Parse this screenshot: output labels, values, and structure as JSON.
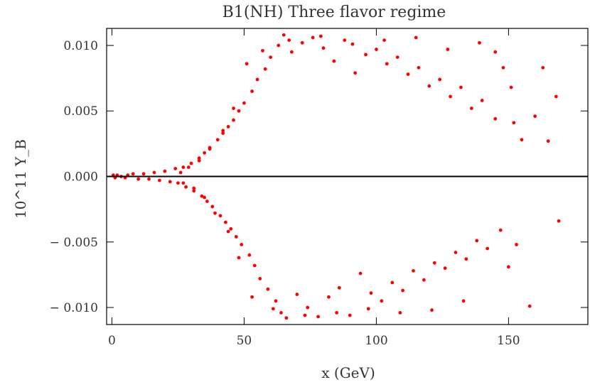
{
  "chart_data": {
    "type": "scatter",
    "title": "B1(NH) Three flavor regime",
    "xlabel": "x (GeV)",
    "ylabel": "10^11 Y_B",
    "xlim": [
      -2,
      180
    ],
    "ylim": [
      -0.0113,
      0.0113
    ],
    "x_ticks": [
      0,
      50,
      100,
      150
    ],
    "x_tick_labels": [
      "0",
      "50",
      "100",
      "150"
    ],
    "y_ticks": [
      -0.01,
      -0.005,
      0.0,
      0.005,
      0.01
    ],
    "y_tick_labels": [
      "− 0.010",
      "− 0.005",
      "0.000",
      "0.005",
      "0.010"
    ],
    "reference_line_y": 0,
    "marker_color": "#ff0000",
    "axis_color": "#000000",
    "series": [
      {
        "points": [
          [
            0.5,
            0.0001
          ],
          [
            1.2,
            -0.0001
          ],
          [
            2.0,
            0.0001
          ],
          [
            3.5,
            0.0
          ],
          [
            5.0,
            -0.0001
          ],
          [
            6.0,
            0.0001
          ],
          [
            8.0,
            0.0002
          ],
          [
            10.0,
            -0.0002
          ],
          [
            12.0,
            0.0002
          ],
          [
            14.0,
            -0.0002
          ],
          [
            16.0,
            0.0003
          ],
          [
            18.0,
            -0.0003
          ],
          [
            20.0,
            0.0004
          ],
          [
            22.0,
            -0.0004
          ],
          [
            24.0,
            0.0006
          ],
          [
            25.0,
            -0.0005
          ],
          [
            27.0,
            0.0007
          ],
          [
            28.0,
            -0.0008
          ],
          [
            30.0,
            0.001
          ],
          [
            31.0,
            -0.0011
          ],
          [
            33.0,
            0.0014
          ],
          [
            34.0,
            -0.0015
          ],
          [
            35.0,
            0.0018
          ],
          [
            36.0,
            -0.0019
          ],
          [
            37.0,
            0.0022
          ],
          [
            38.0,
            -0.0023
          ],
          [
            40.0,
            0.0028
          ],
          [
            41.0,
            -0.003
          ],
          [
            42.0,
            0.0033
          ],
          [
            43.0,
            -0.0035
          ],
          [
            44.0,
            0.0038
          ],
          [
            45.0,
            -0.004
          ],
          [
            46.0,
            0.0043
          ],
          [
            47.0,
            -0.0046
          ],
          [
            48.0,
            0.005
          ],
          [
            49.0,
            -0.0052
          ],
          [
            50.0,
            0.0056
          ],
          [
            52.0,
            -0.006
          ],
          [
            53.0,
            0.0065
          ],
          [
            54.0,
            -0.0068
          ],
          [
            55.0,
            0.0074
          ],
          [
            56.0,
            -0.0078
          ],
          [
            58.0,
            0.0082
          ],
          [
            59.0,
            -0.0086
          ],
          [
            60.0,
            0.0091
          ],
          [
            62.0,
            -0.0095
          ],
          [
            63.0,
            0.01
          ],
          [
            64.0,
            -0.0104
          ],
          [
            65.0,
            0.0108
          ],
          [
            66.0,
            -0.0108
          ],
          [
            68.0,
            0.0095
          ],
          [
            70.0,
            -0.009
          ],
          [
            72.0,
            0.0102
          ],
          [
            74.0,
            -0.01
          ],
          [
            76.0,
            0.0106
          ],
          [
            78.0,
            -0.0107
          ],
          [
            80.0,
            0.0098
          ],
          [
            82.0,
            -0.0092
          ],
          [
            84.0,
            0.0088
          ],
          [
            86.0,
            -0.0085
          ],
          [
            88.0,
            0.0104
          ],
          [
            90.0,
            -0.0106
          ],
          [
            92.0,
            0.0079
          ],
          [
            94.0,
            -0.0074
          ],
          [
            96.0,
            0.0093
          ],
          [
            98.0,
            -0.0089
          ],
          [
            100.0,
            0.0097
          ],
          [
            102.0,
            -0.0095
          ],
          [
            104.0,
            0.0086
          ],
          [
            106.0,
            -0.0081
          ],
          [
            108.0,
            0.0091
          ],
          [
            110.0,
            -0.0087
          ],
          [
            112.0,
            0.0078
          ],
          [
            114.0,
            -0.0072
          ],
          [
            116.0,
            0.0083
          ],
          [
            118.0,
            -0.0079
          ],
          [
            120.0,
            0.0069
          ],
          [
            122.0,
            -0.0066
          ],
          [
            124.0,
            0.0074
          ],
          [
            126.0,
            -0.007
          ],
          [
            128.0,
            0.0061
          ],
          [
            130.0,
            -0.0058
          ],
          [
            132.0,
            0.0068
          ],
          [
            134.0,
            -0.0063
          ],
          [
            136.0,
            0.0052
          ],
          [
            138.0,
            -0.0049
          ],
          [
            140.0,
            0.0058
          ],
          [
            142.0,
            -0.0055
          ],
          [
            145.0,
            0.0044
          ],
          [
            147.0,
            -0.0041
          ],
          [
            148.0,
            0.0083
          ],
          [
            151.0,
            0.0068
          ],
          [
            153.0,
            -0.0052
          ],
          [
            155.0,
            0.0028
          ],
          [
            158.0,
            -0.0099
          ],
          [
            160.0,
            0.0046
          ],
          [
            163.0,
            0.0083
          ],
          [
            165.0,
            0.0027
          ],
          [
            168.0,
            0.0061
          ],
          [
            169.0,
            -0.0034
          ],
          [
            152.0,
            0.0041
          ],
          [
            150.0,
            -0.0069
          ],
          [
            145.0,
            0.0095
          ],
          [
            139.0,
            0.0102
          ],
          [
            133.0,
            -0.0095
          ],
          [
            127.0,
            0.0097
          ],
          [
            121.0,
            -0.0102
          ],
          [
            115.0,
            0.0106
          ],
          [
            109.0,
            -0.0104
          ],
          [
            103.0,
            0.0104
          ],
          [
            97.0,
            -0.0101
          ],
          [
            91.0,
            0.0101
          ],
          [
            85.0,
            -0.0104
          ],
          [
            79.0,
            0.0107
          ],
          [
            73.0,
            -0.0106
          ],
          [
            67.0,
            0.0104
          ],
          [
            61.0,
            -0.0101
          ],
          [
            57.0,
            0.0096
          ],
          [
            53.0,
            -0.0092
          ],
          [
            51.0,
            0.0086
          ],
          [
            48.0,
            -0.0062
          ],
          [
            46.0,
            0.0052
          ],
          [
            44.0,
            -0.0042
          ],
          [
            42.0,
            0.0035
          ],
          [
            39.0,
            -0.0028
          ],
          [
            37.0,
            0.0021
          ],
          [
            35.0,
            -0.0016
          ],
          [
            33.0,
            0.0012
          ],
          [
            31.0,
            -0.0009
          ],
          [
            29.0,
            0.0007
          ],
          [
            27.0,
            -0.0005
          ],
          [
            26.0,
            0.0003
          ]
        ]
      }
    ]
  }
}
